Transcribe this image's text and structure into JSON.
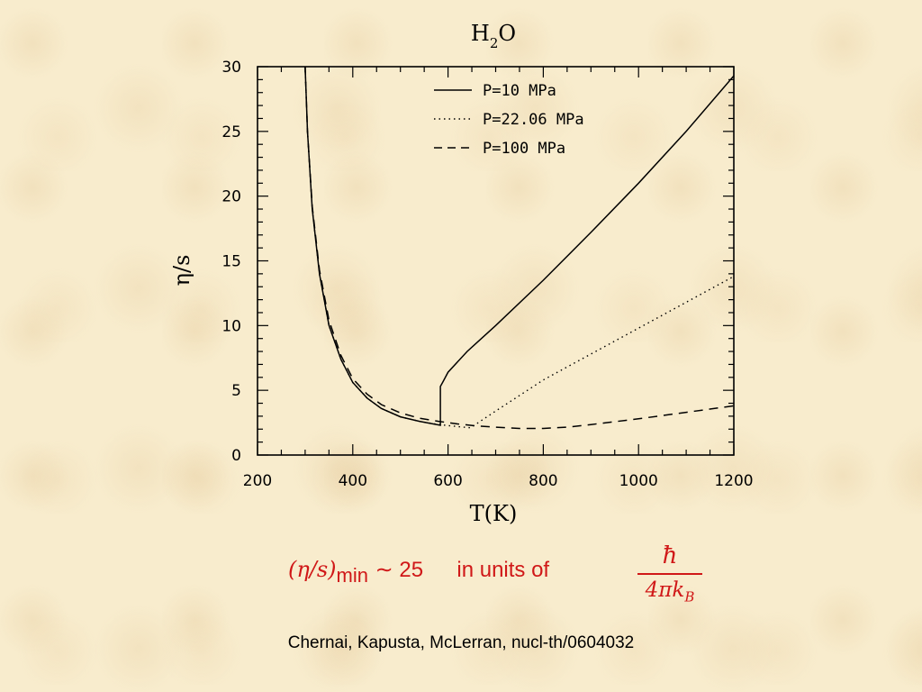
{
  "chart_data": {
    "type": "line",
    "title": "H2O",
    "title_main": "H",
    "title_sub": "2",
    "title_end": "O",
    "xlabel": "T(K)",
    "ylabel": "η/s",
    "xlim": [
      200,
      1200
    ],
    "ylim": [
      0,
      30
    ],
    "xticks": [
      200,
      400,
      600,
      800,
      1000,
      1200
    ],
    "yticks": [
      0,
      5,
      10,
      15,
      20,
      25,
      30
    ],
    "legend_position": "top-right",
    "series": [
      {
        "name": "P=10  MPa",
        "style": "solid",
        "x": [
          300,
          305,
          315,
          330,
          350,
          375,
          400,
          430,
          460,
          500,
          540,
          584,
          584,
          590,
          600,
          640,
          700,
          800,
          900,
          1000,
          1100,
          1200
        ],
        "y": [
          30,
          25,
          19,
          14,
          10,
          7.4,
          5.6,
          4.4,
          3.6,
          2.95,
          2.6,
          2.3,
          5.3,
          5.7,
          6.4,
          8.0,
          10.0,
          13.5,
          17.2,
          21.0,
          25.0,
          29.3
        ]
      },
      {
        "name": "P=22.06  MPa",
        "style": "dotted",
        "x": [
          300,
          305,
          315,
          330,
          350,
          375,
          400,
          430,
          460,
          500,
          540,
          580,
          620,
          647,
          700,
          800,
          900,
          1000,
          1100,
          1200
        ],
        "y": [
          30,
          25,
          19,
          14,
          10,
          7.4,
          5.6,
          4.4,
          3.6,
          2.95,
          2.6,
          2.35,
          2.2,
          2.1,
          3.4,
          5.8,
          7.8,
          9.8,
          11.8,
          13.8
        ]
      },
      {
        "name": "P=100  MPa",
        "style": "dashed",
        "x": [
          300,
          305,
          315,
          330,
          350,
          375,
          400,
          430,
          460,
          500,
          540,
          580,
          620,
          660,
          700,
          750,
          800,
          850,
          900,
          1000,
          1100,
          1200
        ],
        "y": [
          30,
          25,
          19.2,
          14.3,
          10.4,
          7.7,
          5.9,
          4.7,
          3.9,
          3.25,
          2.85,
          2.6,
          2.4,
          2.25,
          2.15,
          2.05,
          2.05,
          2.15,
          2.35,
          2.8,
          3.3,
          3.8
        ]
      }
    ]
  },
  "formula": {
    "paren_text": "(η/s)",
    "sub_text": "min",
    "approx_text": "∼ 25",
    "units_text": "in units of",
    "numerator": "ħ",
    "denominator": "4πk",
    "denominator_sub": "B",
    "color": "#d01818"
  },
  "citation": "Chernai, Kapusta, McLerran, nucl-th/0604032"
}
